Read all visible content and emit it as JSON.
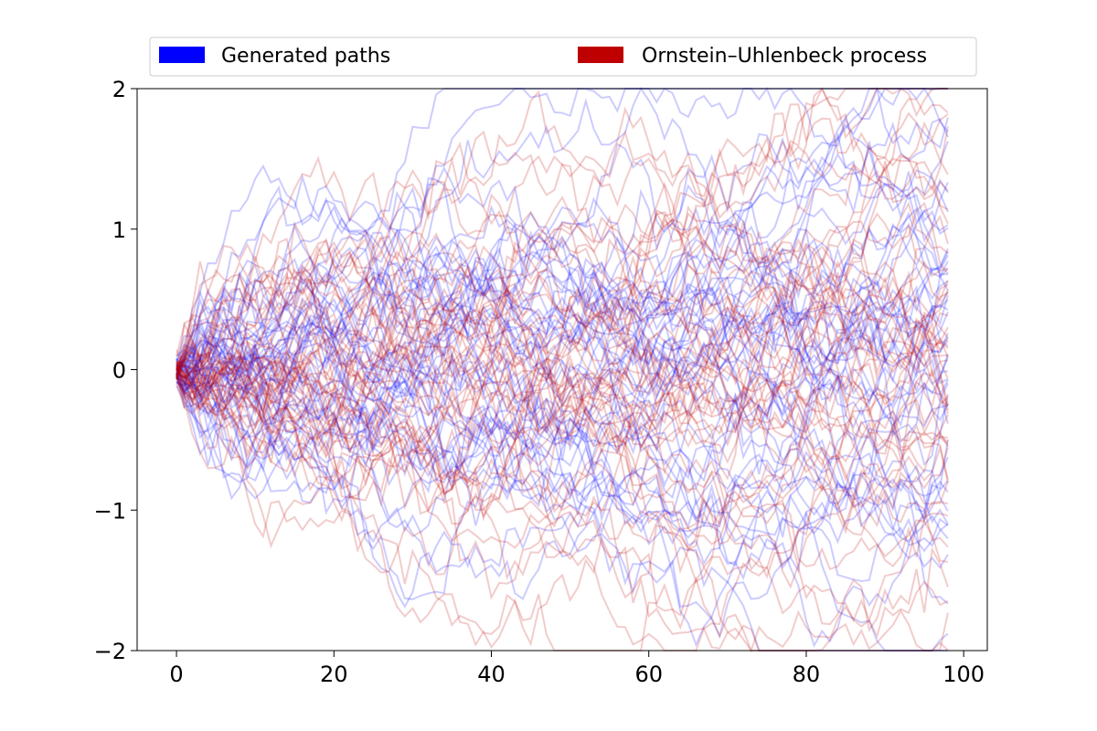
{
  "chart_data": {
    "type": "line",
    "title": "",
    "xlabel": "",
    "ylabel": "",
    "xlim": [
      -5,
      103
    ],
    "ylim": [
      -2,
      2
    ],
    "x_ticks": [
      0,
      20,
      40,
      60,
      80,
      100
    ],
    "y_ticks": [
      -2,
      -1,
      0,
      1,
      2
    ],
    "x_tick_labels": [
      "0",
      "20",
      "40",
      "60",
      "80",
      "100"
    ],
    "y_tick_labels": [
      "−2",
      "−1",
      "0",
      "1",
      "2"
    ],
    "grid": false,
    "legend_position": "top",
    "x_range": [
      0,
      98
    ],
    "series": [
      {
        "name": "Generated paths",
        "color": "#0000ff",
        "line_alpha": 0.2,
        "path_count": 50,
        "seed": 12345,
        "volatility": 0.15,
        "mean_reversion": 0.003,
        "start": 0
      },
      {
        "name": "Ornstein–Uhlenbeck process",
        "color": "#bf0000",
        "line_alpha": 0.2,
        "path_count": 50,
        "seed": 98765,
        "volatility": 0.15,
        "mean_reversion": 0.003,
        "start": 0
      }
    ]
  }
}
